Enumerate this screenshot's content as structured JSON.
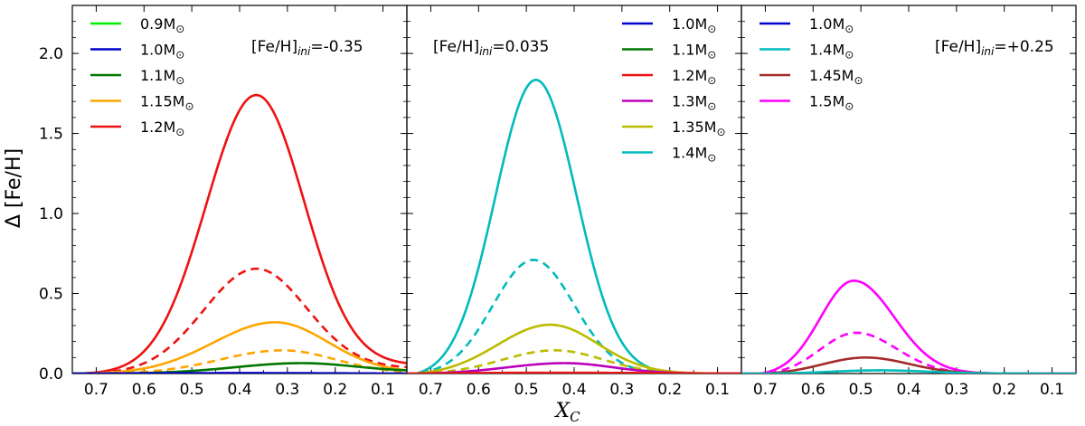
{
  "figure": {
    "xlabel": "X",
    "xlabel_sub": "C",
    "ylabel": "Δ [Fe/H]"
  },
  "chart_data": [
    {
      "type": "line",
      "panel": "left",
      "xlim": [
        0.75,
        0.05
      ],
      "ylim": [
        0,
        2.3
      ],
      "xticks": [
        "0.7",
        "0.6",
        "0.5",
        "0.4",
        "0.3",
        "0.2",
        "0.1"
      ],
      "yticks": [
        "0.0",
        "0.5",
        "1.0",
        "1.5",
        "2.0"
      ],
      "annotation": {
        "main": "[Fe/H]",
        "sub": "ini",
        "value": "=-0.35"
      },
      "legend_position": "top-left",
      "legend": [
        {
          "label": "0.9M",
          "color": "#00ee00"
        },
        {
          "label": "1.0M",
          "color": "#0000cc"
        },
        {
          "label": "1.1M",
          "color": "#007700"
        },
        {
          "label": "1.15M",
          "color": "#ffa500"
        },
        {
          "label": "1.2M",
          "color": "#ee1111"
        }
      ],
      "series": [
        {
          "mass_label": "1.2M",
          "style": "solid",
          "color": "#ee1111",
          "peak_x": 0.365,
          "peak_y": 1.74,
          "sigma_left": 0.105,
          "sigma_right": 0.1,
          "start_x": 0.735,
          "end_x": 0.05,
          "end_y": 0.065
        },
        {
          "mass_label": "1.2M",
          "style": "dashed",
          "color": "#ee1111",
          "peak_x": 0.365,
          "peak_y": 0.655,
          "sigma_left": 0.11,
          "sigma_right": 0.105,
          "start_x": 0.73,
          "end_x": 0.05,
          "end_y": 0.04
        },
        {
          "mass_label": "1.15M",
          "style": "solid",
          "color": "#ffa500",
          "peak_x": 0.325,
          "peak_y": 0.32,
          "sigma_left": 0.13,
          "sigma_right": 0.11,
          "start_x": 0.73,
          "end_x": 0.05,
          "end_y": 0.02
        },
        {
          "mass_label": "1.15M",
          "style": "dashed",
          "color": "#ffa500",
          "peak_x": 0.31,
          "peak_y": 0.145,
          "sigma_left": 0.13,
          "sigma_right": 0.11,
          "start_x": 0.73,
          "end_x": 0.05,
          "end_y": 0.01
        },
        {
          "mass_label": "1.1M",
          "style": "solid",
          "color": "#007700",
          "peak_x": 0.27,
          "peak_y": 0.065,
          "sigma_left": 0.14,
          "sigma_right": 0.11,
          "start_x": 0.7,
          "end_x": 0.05,
          "end_y": 0.02
        },
        {
          "mass_label": "1.0M",
          "style": "solid",
          "color": "#0000cc",
          "peak_x": 0.4,
          "peak_y": 0.003,
          "sigma_left": 0.3,
          "sigma_right": 0.3,
          "start_x": 0.73,
          "end_x": 0.05,
          "end_y": 0.0
        }
      ]
    },
    {
      "type": "line",
      "panel": "middle",
      "xlim": [
        0.75,
        0.05
      ],
      "ylim": [
        0,
        2.3
      ],
      "xticks": [
        "0.7",
        "0.6",
        "0.5",
        "0.4",
        "0.3",
        "0.2",
        "0.1"
      ],
      "yticks": [],
      "annotation": {
        "main": "[Fe/H]",
        "sub": "ini",
        "value": "=0.035"
      },
      "legend_position": "top-right",
      "legend": [
        {
          "label": "1.0M",
          "color": "#0000cc"
        },
        {
          "label": "1.1M",
          "color": "#007700"
        },
        {
          "label": "1.2M",
          "color": "#ee1111"
        },
        {
          "label": "1.3M",
          "color": "#bb00bb"
        },
        {
          "label": "1.35M",
          "color": "#bbbb00"
        },
        {
          "label": "1.4M",
          "color": "#00bbbb"
        }
      ],
      "series": [
        {
          "mass_label": "1.4M",
          "style": "solid",
          "color": "#00bbbb",
          "peak_x": 0.48,
          "peak_y": 1.835,
          "sigma_left": 0.085,
          "sigma_right": 0.085,
          "start_x": 0.73,
          "end_x": 0.05,
          "end_y": 0.0
        },
        {
          "mass_label": "1.4M",
          "style": "dashed",
          "color": "#00bbbb",
          "peak_x": 0.485,
          "peak_y": 0.71,
          "sigma_left": 0.085,
          "sigma_right": 0.085,
          "start_x": 0.73,
          "end_x": 0.05,
          "end_y": 0.0
        },
        {
          "mass_label": "1.35M",
          "style": "solid",
          "color": "#bbbb00",
          "peak_x": 0.45,
          "peak_y": 0.305,
          "sigma_left": 0.11,
          "sigma_right": 0.1,
          "start_x": 0.73,
          "end_x": 0.05,
          "end_y": 0.0
        },
        {
          "mass_label": "1.35M",
          "style": "dashed",
          "color": "#bbbb00",
          "peak_x": 0.44,
          "peak_y": 0.145,
          "sigma_left": 0.11,
          "sigma_right": 0.1,
          "start_x": 0.73,
          "end_x": 0.05,
          "end_y": 0.0
        },
        {
          "mass_label": "1.3M",
          "style": "solid",
          "color": "#bb00bb",
          "peak_x": 0.42,
          "peak_y": 0.065,
          "sigma_left": 0.12,
          "sigma_right": 0.1,
          "start_x": 0.73,
          "end_x": 0.05,
          "end_y": 0.0
        },
        {
          "mass_label": "1.2M",
          "style": "solid",
          "color": "#ee1111",
          "peak_x": 0.45,
          "peak_y": 0.005,
          "sigma_left": 0.3,
          "sigma_right": 0.3,
          "start_x": 0.73,
          "end_x": 0.05,
          "end_y": 0.0
        }
      ]
    },
    {
      "type": "line",
      "panel": "right",
      "xlim": [
        0.75,
        0.05
      ],
      "ylim": [
        0,
        2.3
      ],
      "xticks": [
        "0.7",
        "0.6",
        "0.5",
        "0.4",
        "0.3",
        "0.2",
        "0.1"
      ],
      "yticks": [],
      "annotation": {
        "main": "[Fe/H]",
        "sub": "ini",
        "value": "=+0.25"
      },
      "legend_position": "top-left",
      "legend": [
        {
          "label": "1.0M",
          "color": "#0000cc"
        },
        {
          "label": "1.4M",
          "color": "#00bbbb"
        },
        {
          "label": "1.45M",
          "color": "#a52a2a"
        },
        {
          "label": "1.5M",
          "color": "#ff00ff"
        }
      ],
      "series": [
        {
          "mass_label": "1.5M",
          "style": "solid",
          "color": "#ff00ff",
          "peak_x": 0.515,
          "peak_y": 0.58,
          "sigma_left": 0.07,
          "sigma_right": 0.085,
          "start_x": 0.71,
          "end_x": 0.05,
          "end_y": 0.0
        },
        {
          "mass_label": "1.5M",
          "style": "dashed",
          "color": "#ff00ff",
          "peak_x": 0.51,
          "peak_y": 0.255,
          "sigma_left": 0.075,
          "sigma_right": 0.085,
          "start_x": 0.7,
          "end_x": 0.05,
          "end_y": 0.0
        },
        {
          "mass_label": "1.45M",
          "style": "solid",
          "color": "#a52a2a",
          "peak_x": 0.49,
          "peak_y": 0.1,
          "sigma_left": 0.09,
          "sigma_right": 0.09,
          "start_x": 0.7,
          "end_x": 0.05,
          "end_y": 0.0
        },
        {
          "mass_label": "1.4M",
          "style": "solid",
          "color": "#00bbbb",
          "peak_x": 0.46,
          "peak_y": 0.02,
          "sigma_left": 0.1,
          "sigma_right": 0.1,
          "start_x": 0.7,
          "end_x": 0.05,
          "end_y": 0.0
        }
      ]
    }
  ]
}
